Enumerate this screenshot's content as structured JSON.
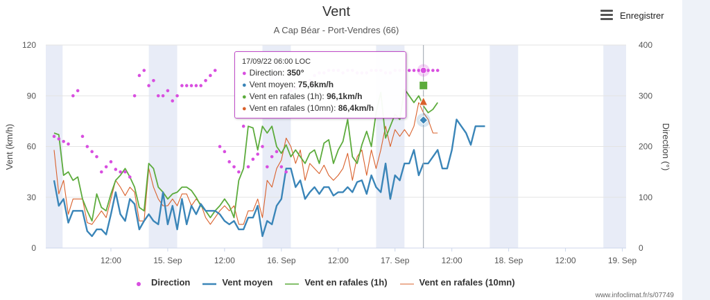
{
  "title": "Vent",
  "subtitle": "A Cap Béar - Port-Vendres (66)",
  "export": {
    "label": "Enregistrer",
    "icon": "hamburger-menu-icon"
  },
  "credit": "www.infoclimat.fr/s/07749",
  "colors": {
    "direction": "#d84ee0",
    "vent_moyen": "#3a85b8",
    "rafales_1h": "#5cab3c",
    "rafales_10mn": "#d9602b",
    "night_band": "#e8ecf7"
  },
  "tooltip": {
    "header": "17/09/22 06:00 LOC",
    "rows": [
      {
        "label": "Direction",
        "value": "350°"
      },
      {
        "label": "Vent moyen",
        "value": "75,6km/h"
      },
      {
        "label": "Vent en rafales (1h)",
        "value": "96,1km/h"
      },
      {
        "label": "Vent en rafales (10mn)",
        "value": "86,4km/h"
      }
    ]
  },
  "chart_data": {
    "type": "line",
    "title": "Vent",
    "subtitle": "A Cap Béar - Port-Vendres (66)",
    "ylabel": "Vent (km/h)",
    "y2label": "Direction (°)",
    "ylim": [
      0,
      120
    ],
    "y2lim": [
      0,
      400
    ],
    "y_ticks": [
      0,
      30,
      60,
      90,
      120
    ],
    "y2_ticks": [
      0,
      100,
      200,
      300,
      400
    ],
    "x_ticks": [
      "12:00",
      "15. Sep",
      "12:00",
      "16. Sep",
      "12:00",
      "17. Sep",
      "12:00",
      "18. Sep",
      "12:00",
      "19. Sep"
    ],
    "x_range_hours": [
      -36,
      0
    ],
    "x_tick_hours": [
      12,
      24,
      36,
      48,
      60,
      72,
      84,
      96,
      108,
      120
    ],
    "x_range": [
      -1.76,
      120.8
    ],
    "night_bands": [
      [
        -1.76,
        1.8
      ],
      [
        20,
        26
      ],
      [
        44,
        50
      ],
      [
        68,
        74
      ],
      [
        92,
        98
      ],
      [
        116,
        120.8
      ]
    ],
    "grid": true,
    "legend_position": "bottom",
    "series": [
      {
        "name": "Vent moyen",
        "type": "line",
        "axis": "left",
        "x": [
          0,
          1,
          2,
          3,
          4,
          5,
          6,
          7,
          8,
          9,
          10,
          11,
          12,
          13,
          14,
          15,
          16,
          17,
          18,
          19,
          20,
          21,
          22,
          23,
          24,
          25,
          26,
          27,
          28,
          29,
          30,
          31,
          32,
          33,
          34,
          35,
          36,
          37,
          38,
          39,
          40,
          41,
          42,
          43,
          44,
          45,
          46,
          47,
          48,
          49,
          50,
          51,
          52,
          53,
          54,
          55,
          56,
          57,
          58,
          59,
          60,
          61,
          62,
          63,
          64,
          65,
          66,
          67,
          68,
          69,
          70,
          71,
          72,
          73,
          74,
          75,
          76,
          77,
          78,
          79,
          80,
          81,
          82,
          83,
          84,
          85,
          86,
          87,
          88,
          89,
          90,
          91
        ],
        "y": [
          40,
          25,
          29,
          15,
          22,
          22,
          22,
          10,
          7,
          11,
          11,
          8,
          20,
          33,
          20,
          16,
          29,
          26,
          11,
          16,
          20,
          16,
          14,
          33,
          14,
          25,
          11,
          29,
          14,
          25,
          20,
          26,
          22,
          22,
          22,
          20,
          16,
          14,
          16,
          11,
          11,
          18,
          18,
          25,
          7,
          16,
          14,
          25,
          29,
          47,
          47,
          36,
          40,
          29,
          33,
          36,
          32,
          36,
          36,
          31,
          33,
          33,
          36,
          33,
          39,
          40,
          32,
          43,
          36,
          33,
          50,
          29,
          43,
          40,
          50,
          50,
          58,
          43,
          50,
          50,
          54,
          58,
          47,
          47,
          58,
          76,
          72,
          68,
          61,
          72,
          72,
          72
        ],
        "values_hour_offset": -36
      },
      {
        "name": "Vent en rafales (1h)",
        "type": "line",
        "axis": "left",
        "values_hour_offset": -36,
        "y": [
          68,
          67,
          43,
          45,
          40,
          42,
          29,
          22,
          16,
          32,
          24,
          22,
          32,
          40,
          43,
          47,
          42,
          36,
          24,
          22,
          50,
          47,
          36,
          33,
          29,
          32,
          33,
          36,
          36,
          34,
          30,
          25,
          22,
          18,
          22,
          25,
          29,
          25,
          18,
          40,
          47,
          72,
          71,
          58,
          72,
          68,
          72,
          60,
          56,
          61,
          54,
          58,
          54,
          50,
          56,
          58,
          50,
          62,
          64,
          50,
          58,
          63,
          76,
          54,
          50,
          61,
          69,
          60,
          80,
          92,
          65,
          72,
          79,
          76,
          94,
          90,
          86,
          90,
          84,
          80,
          82,
          86
        ]
      },
      {
        "name": "Vent en rafales (10mn)",
        "type": "line",
        "axis": "left",
        "values_hour_offset": -36,
        "y": [
          58,
          32,
          40,
          20,
          29,
          29,
          29,
          15,
          14,
          18,
          22,
          18,
          29,
          40,
          36,
          31,
          36,
          33,
          16,
          16,
          47,
          36,
          29,
          25,
          25,
          29,
          25,
          32,
          32,
          25,
          29,
          26,
          18,
          14,
          18,
          22,
          25,
          22,
          25,
          14,
          14,
          22,
          22,
          29,
          18,
          40,
          36,
          47,
          52,
          65,
          60,
          50,
          58,
          40,
          50,
          47,
          44,
          49,
          43,
          40,
          43,
          47,
          56,
          40,
          54,
          58,
          43,
          58,
          47,
          58,
          72,
          60,
          70,
          66,
          70,
          66,
          72,
          86,
          80,
          76,
          68,
          68
        ]
      },
      {
        "name": "Direction",
        "type": "scatter",
        "axis": "right",
        "values_hour_offset": -36,
        "y": [
          220,
          215,
          210,
          205,
          300,
          310,
          220,
          200,
          190,
          180,
          150,
          160,
          170,
          155,
          150,
          150,
          140,
          300,
          340,
          350,
          320,
          330,
          300,
          300,
          310,
          290,
          300,
          320,
          320,
          320,
          320,
          320,
          330,
          340,
          350,
          200,
          190,
          170,
          160,
          150,
          240,
          160,
          175,
          185,
          200,
          160,
          180,
          190,
          160,
          150,
          310,
          315,
          320,
          320,
          330,
          340,
          345,
          345,
          350,
          350,
          350,
          345,
          350,
          350,
          345,
          345,
          345,
          350,
          350,
          350,
          345,
          345,
          350,
          350,
          350,
          350,
          350,
          350,
          350,
          350,
          350,
          350
        ]
      }
    ]
  }
}
